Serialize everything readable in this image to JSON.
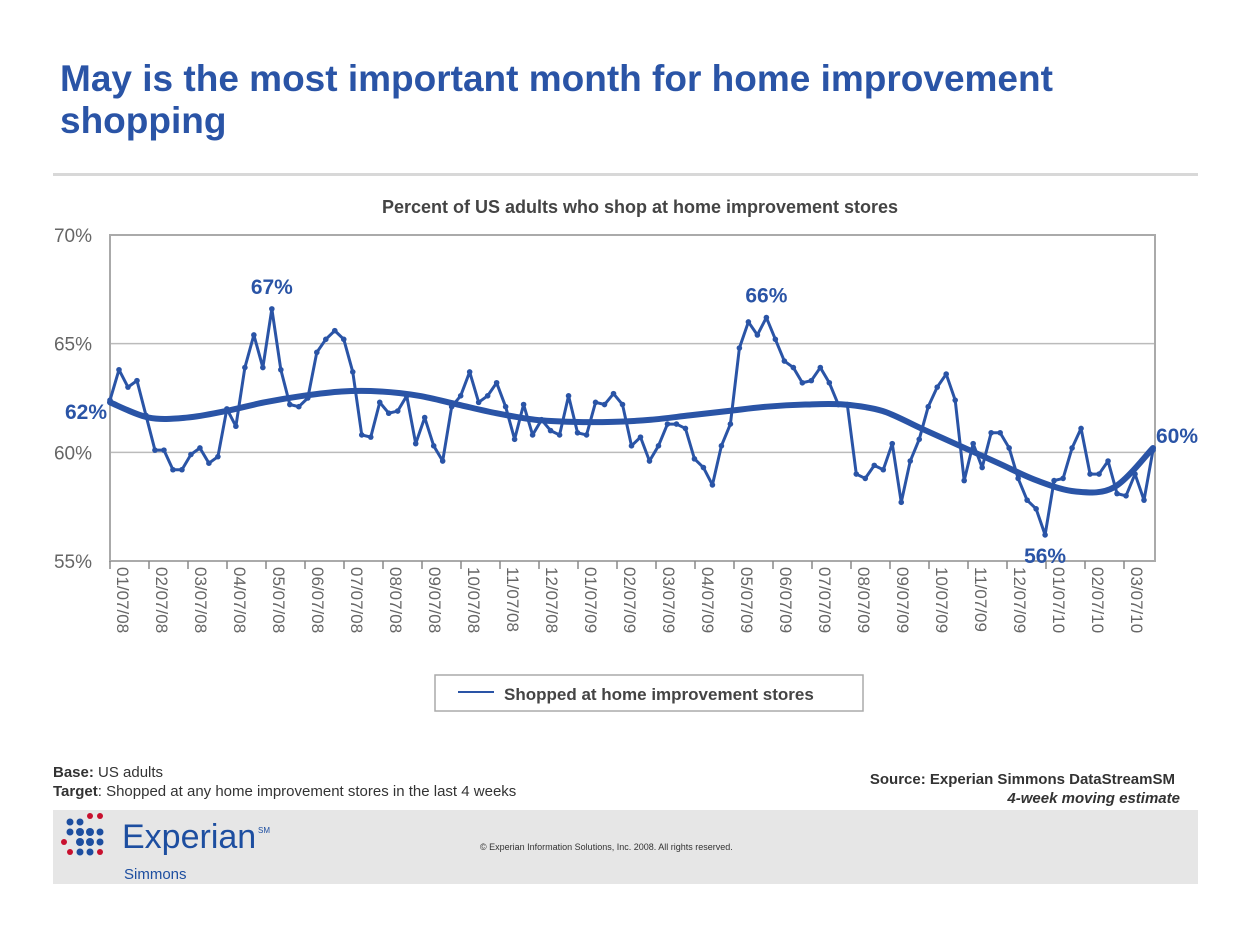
{
  "title": "May is the most important month for home improvement shopping",
  "footer": {
    "base_label": "Base:",
    "base_value": " US adults",
    "target_label": "Target",
    "target_value": ": Shopped at any home improvement stores in the last 4 weeks",
    "source": "Source:  Experian Simmons DataStreamSM",
    "method": "4-week moving estimate",
    "copyright": "© Experian Information Solutions, Inc. 2008.  All rights reserved.",
    "logo_text": "Experian",
    "logo_sm": "SM",
    "logo_sub": "Simmons"
  },
  "colors": {
    "series": "#2a54a6",
    "title": "#2a54a6"
  },
  "chart_data": {
    "type": "line",
    "title": "Percent of US adults who shop at home improvement stores",
    "ylim": [
      55,
      70
    ],
    "yticks": [
      "55%",
      "60%",
      "65%",
      "70%"
    ],
    "ytick_values": [
      55,
      60,
      65,
      70
    ],
    "xticks": [
      "01/07/08",
      "02/07/08",
      "03/07/08",
      "04/07/08",
      "05/07/08",
      "06/07/08",
      "07/07/08",
      "08/07/08",
      "09/07/08",
      "10/07/08",
      "11/07/08",
      "12/07/08",
      "01/07/09",
      "02/07/09",
      "03/07/09",
      "04/07/09",
      "05/07/09",
      "06/07/09",
      "07/07/09",
      "08/07/09",
      "09/07/09",
      "10/07/09",
      "11/07/09",
      "12/07/09",
      "01/07/10",
      "02/07/10",
      "03/07/10"
    ],
    "grid": "horizontal",
    "legend": {
      "position": "bottom",
      "label": "Shopped at home improvement stores"
    },
    "series": [
      {
        "name": "Shopped at home improvement stores",
        "values": [
          62.4,
          63.8,
          63.0,
          63.3,
          61.7,
          60.1,
          60.1,
          59.2,
          59.2,
          59.9,
          60.2,
          59.5,
          59.8,
          62.0,
          61.2,
          63.9,
          65.4,
          63.9,
          66.6,
          63.8,
          62.2,
          62.1,
          62.5,
          64.6,
          65.2,
          65.6,
          65.2,
          63.7,
          60.8,
          60.7,
          62.3,
          61.8,
          61.9,
          62.6,
          60.4,
          61.6,
          60.3,
          59.6,
          62.1,
          62.6,
          63.7,
          62.3,
          62.6,
          63.2,
          62.1,
          60.6,
          62.2,
          60.8,
          61.5,
          61.0,
          60.8,
          62.6,
          60.9,
          60.8,
          62.3,
          62.2,
          62.7,
          62.2,
          60.3,
          60.7,
          59.6,
          60.3,
          61.3,
          61.3,
          61.1,
          59.7,
          59.3,
          58.5,
          60.3,
          61.3,
          64.8,
          66.0,
          65.4,
          66.2,
          65.2,
          64.2,
          63.9,
          63.2,
          63.3,
          63.9,
          63.2,
          62.2,
          62.2,
          59.0,
          58.8,
          59.4,
          59.2,
          60.4,
          57.7,
          59.6,
          60.6,
          62.1,
          63.0,
          63.6,
          62.4,
          58.7,
          60.4,
          59.3,
          60.9,
          60.9,
          60.2,
          58.8,
          57.8,
          57.4,
          56.2,
          58.7,
          58.8,
          60.2,
          61.1,
          59.0,
          59.0,
          59.6,
          58.1,
          58.0,
          59.0,
          57.8,
          60.1
        ]
      }
    ],
    "trendline": [
      62.3,
      61.6,
      61.6,
      61.9,
      62.3,
      62.6,
      62.8,
      62.8,
      62.6,
      62.2,
      61.8,
      61.5,
      61.4,
      61.4,
      61.5,
      61.7,
      61.9,
      62.1,
      62.2,
      62.2,
      61.9,
      61.1,
      60.3,
      59.5,
      58.7,
      58.2,
      58.4,
      60.2
    ],
    "annotations": [
      {
        "text": "62%",
        "index": 0
      },
      {
        "text": "67%",
        "index": 18
      },
      {
        "text": "66%",
        "index": 73
      },
      {
        "text": "56%",
        "index": 104
      },
      {
        "text": "60%",
        "index": 116
      }
    ]
  }
}
